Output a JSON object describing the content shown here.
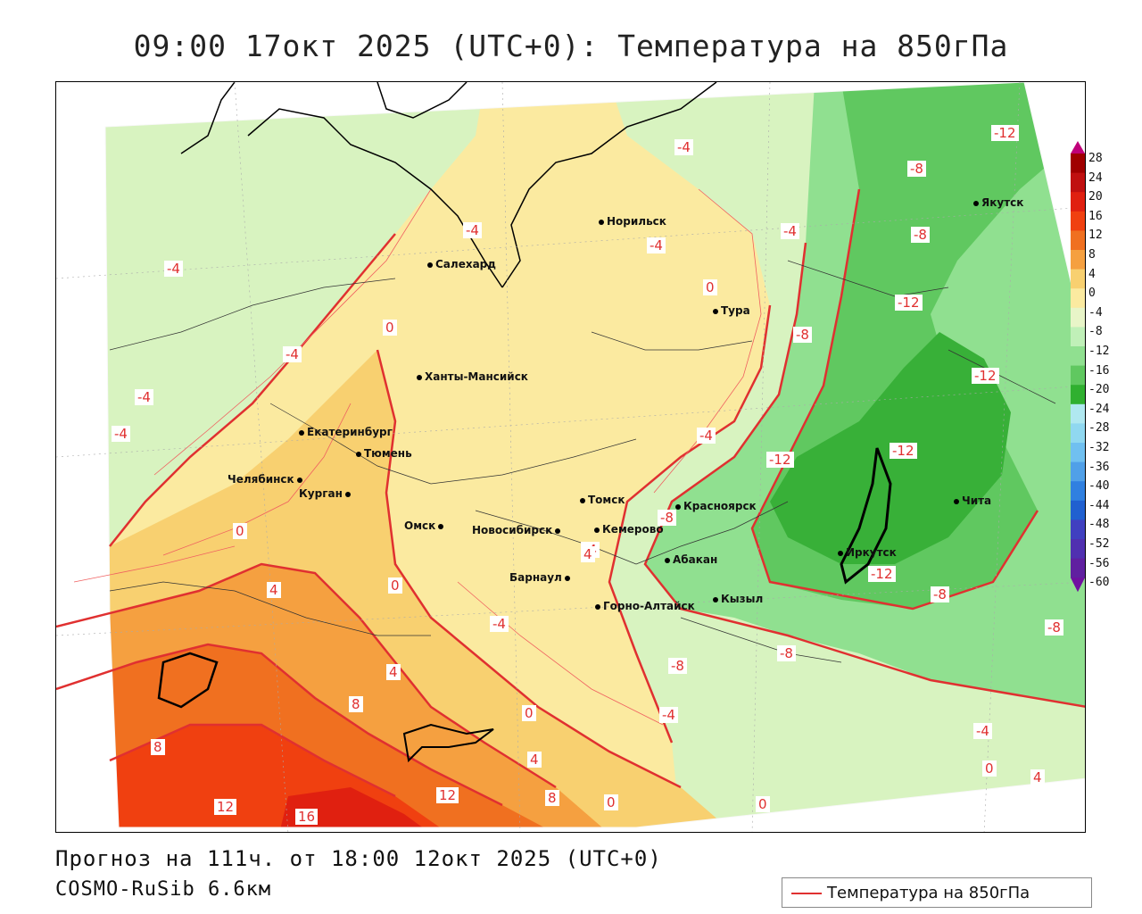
{
  "title": "09:00 17окт 2025 (UTC+0): Температура на 850гПа",
  "footer": {
    "forecast": "Прогноз на 111ч. от 18:00 12окт 2025 (UTC+0)",
    "model": "COSMO-RuSib 6.6км"
  },
  "legend": {
    "label": "Температура на 850гПа",
    "line_color": "#e03030"
  },
  "cities": [
    {
      "name": "Салехард"
    },
    {
      "name": "Норильск"
    },
    {
      "name": "Якутск"
    },
    {
      "name": "Тура"
    },
    {
      "name": "Ханты-Мансийск"
    },
    {
      "name": "Екатеринбург"
    },
    {
      "name": "Тюмень"
    },
    {
      "name": "Челябинск"
    },
    {
      "name": "Курган"
    },
    {
      "name": "Омск"
    },
    {
      "name": "Томск"
    },
    {
      "name": "Новосибирск"
    },
    {
      "name": "Кемерово"
    },
    {
      "name": "Красноярск"
    },
    {
      "name": "Барнаул"
    },
    {
      "name": "Абакан"
    },
    {
      "name": "Горно-Алтайск"
    },
    {
      "name": "Кызыл"
    },
    {
      "name": "Иркутск"
    },
    {
      "name": "Чита"
    }
  ],
  "contour_labels": [
    "-4",
    "-4",
    "-4",
    "-4",
    "-4",
    "-4",
    "-4",
    "-4",
    "-4",
    "-4",
    "-4",
    "-4",
    "-4",
    "-8",
    "-8",
    "-8",
    "-8",
    "-8",
    "-8",
    "-8",
    "-8",
    "-12",
    "-12",
    "-12",
    "-12",
    "-12",
    "-12",
    "0",
    "0",
    "0",
    "0",
    "0",
    "0",
    "0",
    "0",
    "4",
    "4",
    "4",
    "4",
    "4",
    "8",
    "8",
    "8",
    "12",
    "12",
    "16"
  ],
  "colorbar": {
    "ticks": [
      "28",
      "24",
      "20",
      "16",
      "12",
      "8",
      "4",
      "0",
      "-4",
      "-8",
      "-12",
      "-16",
      "-20",
      "-24",
      "-28",
      "-32",
      "-36",
      "-40",
      "-44",
      "-48",
      "-52",
      "-56",
      "-60"
    ],
    "colors": [
      "#c0007a",
      "#a00000",
      "#c01010",
      "#e02010",
      "#f04010",
      "#f07020",
      "#f5a040",
      "#f8d070",
      "#fbeaa0",
      "#e8f5c8",
      "#c0f0b8",
      "#90e090",
      "#60c860",
      "#30b030",
      "#b0e8f0",
      "#90d8f0",
      "#70c0f0",
      "#50a0e8",
      "#3080e0",
      "#2060d0",
      "#4040c0",
      "#5030b0",
      "#6020a0",
      "#7010a0"
    ]
  }
}
